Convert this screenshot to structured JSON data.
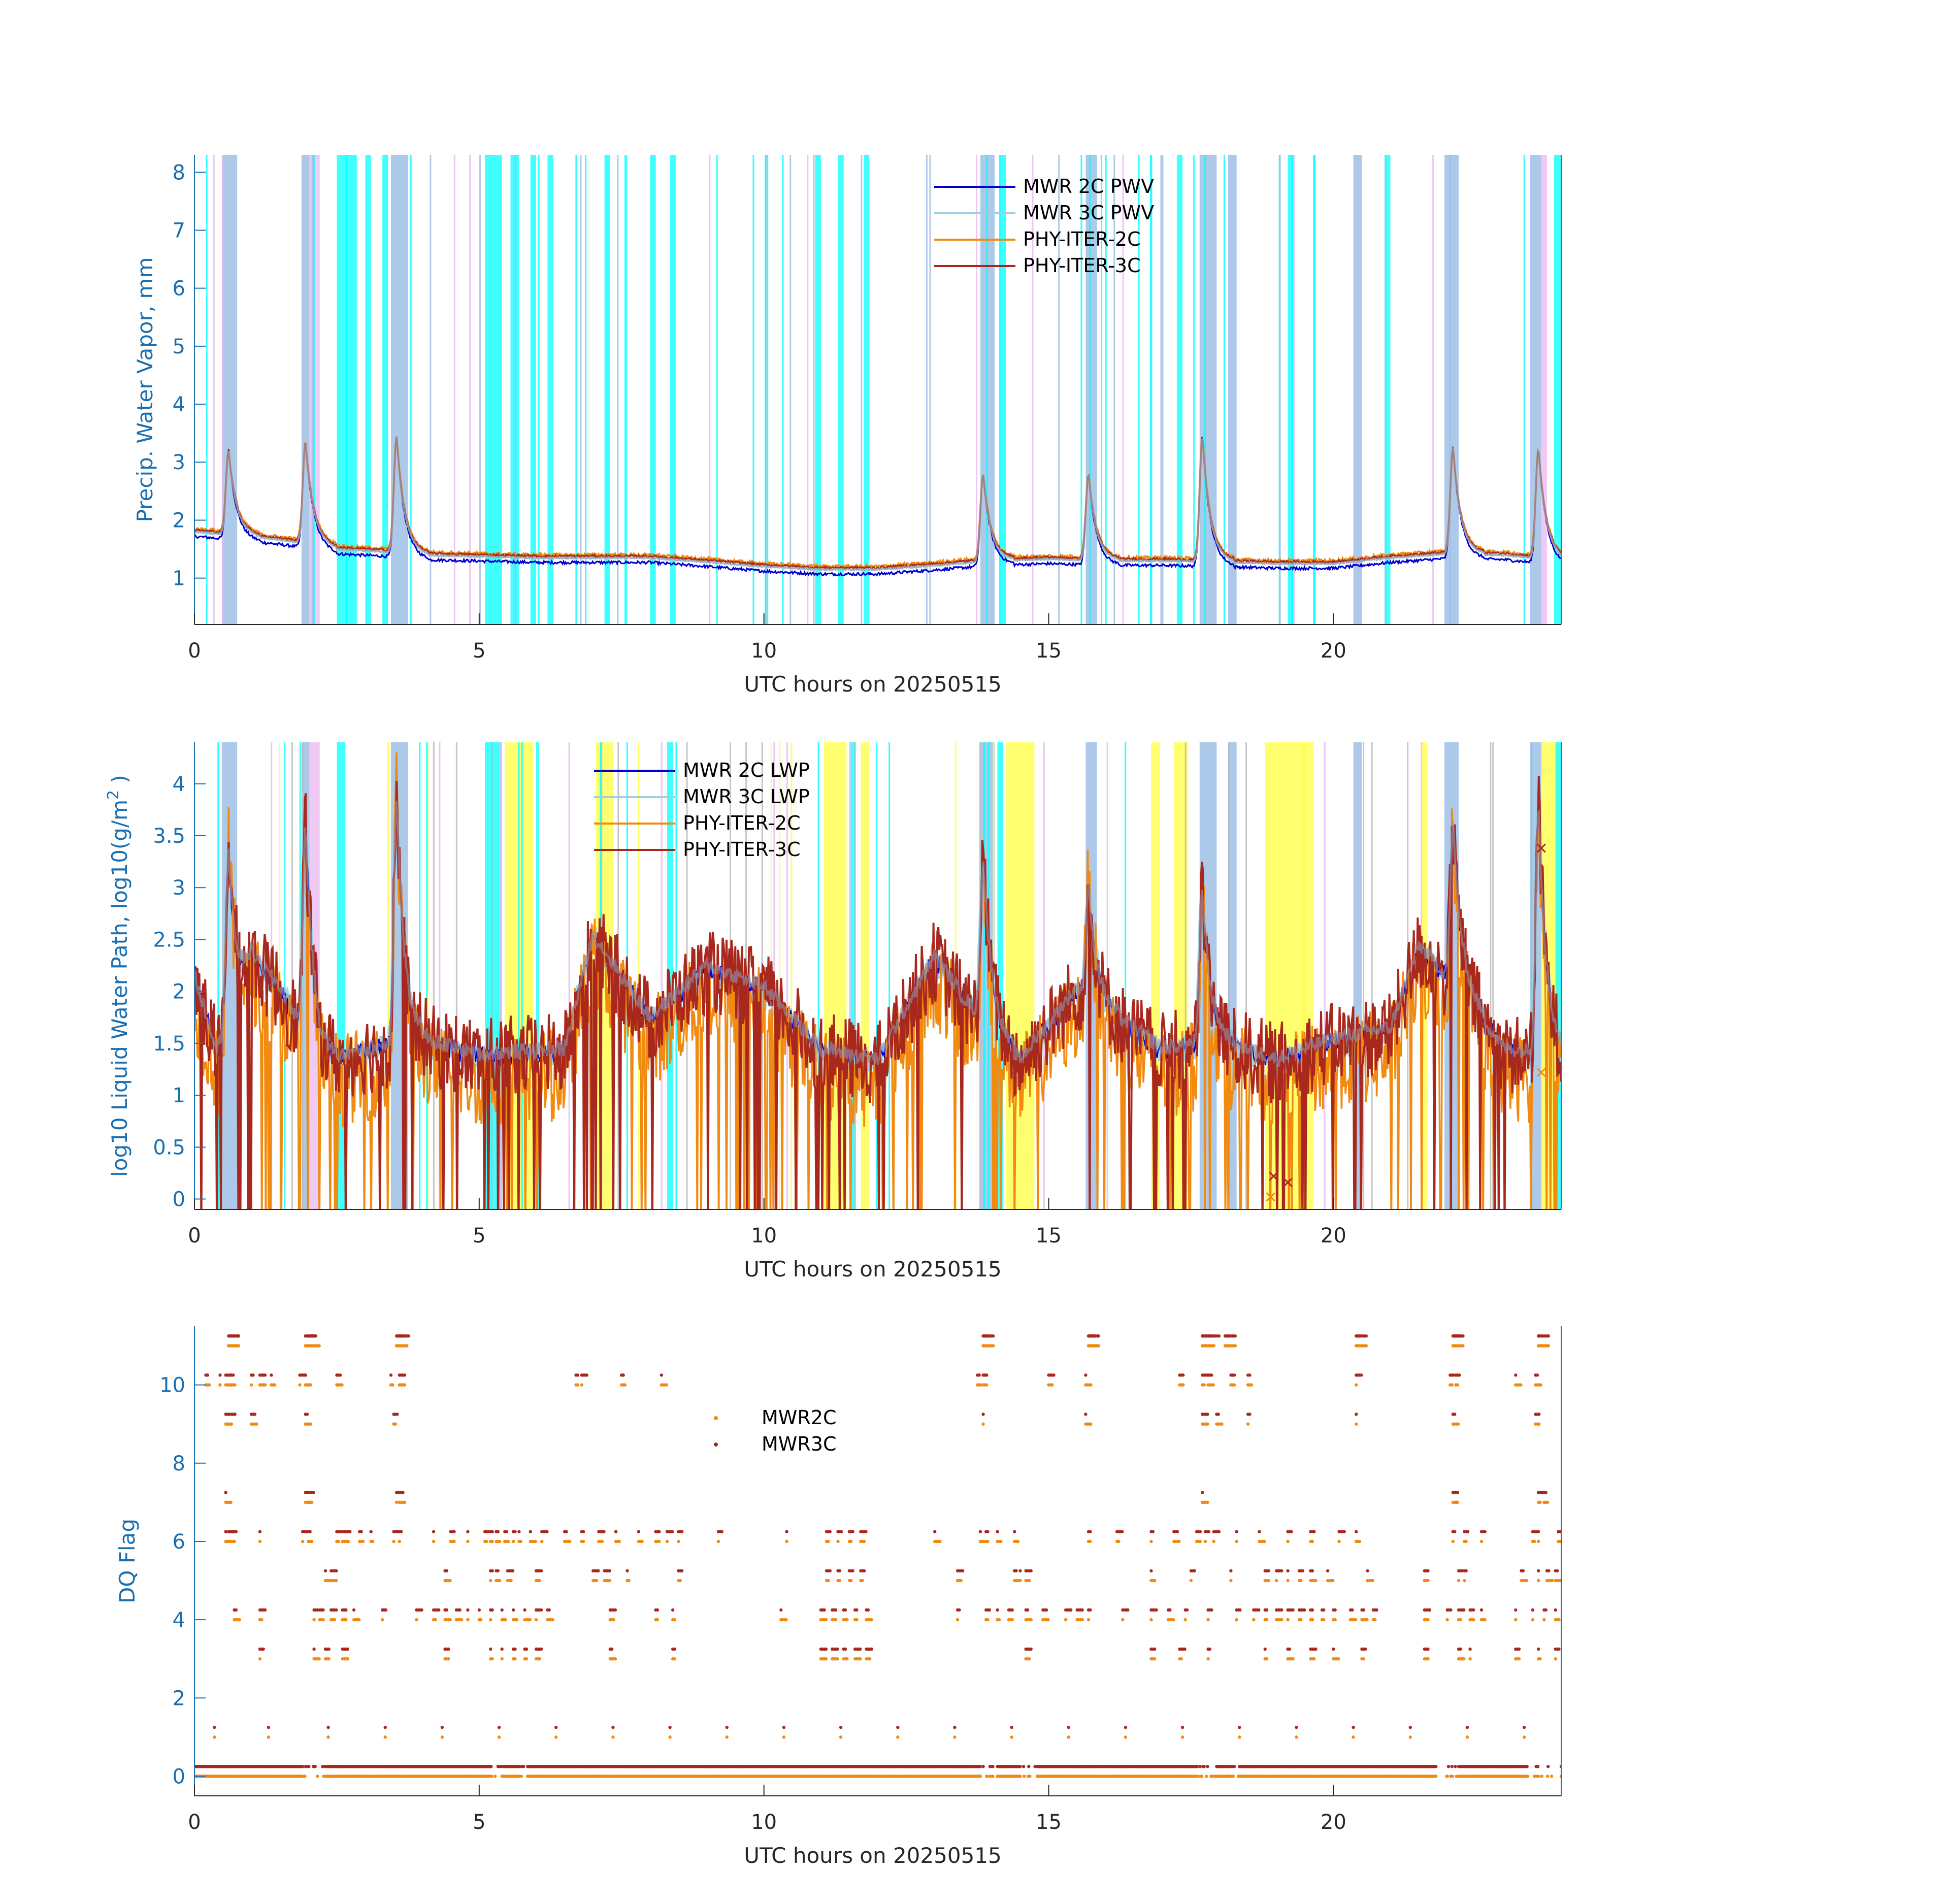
{
  "figure": {
    "colors": {
      "axis_blue": "#1a6fb0",
      "xtick_color": "#262626",
      "mwr2c": "#0000d0",
      "mwr3c": "#9fd0e0",
      "phy2c": "#f08a10",
      "phy3c": "#a8281e",
      "flag_blue": "#9dbfe6",
      "flag_cyan": "#00ffff",
      "flag_pink": "#e9b8ef",
      "flag_yellow": "#ffff40",
      "flag_gray": "#b8b8b8"
    }
  },
  "chart_data": [
    {
      "type": "line",
      "xlabel": "UTC hours on 20250515",
      "ylabel": "Precip. Water Vapor, mm",
      "xlim": [
        0,
        24
      ],
      "ylim": [
        0.2,
        8.3
      ],
      "xticks": [
        0,
        5,
        10,
        15,
        20
      ],
      "yticks": [
        1,
        2,
        3,
        4,
        5,
        6,
        7,
        8
      ],
      "legend": {
        "position": "top-center",
        "entries": [
          "MWR 2C PWV",
          "MWR 3C PWV",
          "PHY-ITER-2C",
          "PHY-ITER-3C"
        ]
      },
      "baseline": [
        [
          0,
          1.8
        ],
        [
          1,
          1.72
        ],
        [
          2,
          1.6
        ],
        [
          2.5,
          1.5
        ],
        [
          3.5,
          1.45
        ],
        [
          4,
          1.4
        ],
        [
          6,
          1.35
        ],
        [
          8,
          1.35
        ],
        [
          9,
          1.28
        ],
        [
          10,
          1.2
        ],
        [
          11,
          1.15
        ],
        [
          12,
          1.15
        ],
        [
          13,
          1.22
        ],
        [
          14,
          1.3
        ],
        [
          15,
          1.33
        ],
        [
          16,
          1.3
        ],
        [
          17,
          1.3
        ],
        [
          18,
          1.28
        ],
        [
          19,
          1.25
        ],
        [
          20,
          1.25
        ],
        [
          21,
          1.35
        ],
        [
          22,
          1.42
        ],
        [
          23,
          1.4
        ],
        [
          24,
          1.3
        ]
      ],
      "spikes": [
        [
          0.6,
          3.2
        ],
        [
          1.95,
          3.35
        ],
        [
          3.55,
          3.45
        ],
        [
          13.85,
          2.8
        ],
        [
          15.7,
          2.8
        ],
        [
          17.7,
          3.45
        ],
        [
          22.1,
          3.25
        ],
        [
          23.6,
          3.25
        ]
      ],
      "flag_bands": [
        {
          "color": "blue",
          "ranges": [
            [
              0.48,
              0.75
            ],
            [
              1.88,
              2.02
            ],
            [
              3.45,
              3.75
            ],
            [
              13.8,
              14.05
            ],
            [
              15.65,
              15.85
            ],
            [
              17.65,
              17.95
            ],
            [
              18.15,
              18.3
            ],
            [
              20.35,
              20.5
            ],
            [
              21.95,
              22.2
            ],
            [
              23.45,
              23.65
            ]
          ]
        },
        {
          "color": "pink",
          "ranges": [
            [
              2.02,
              2.2
            ],
            [
              23.65,
              23.75
            ]
          ]
        },
        {
          "color": "cyan",
          "ranges": [
            [
              2.5,
              2.85
            ],
            [
              3.0,
              3.1
            ],
            [
              3.3,
              3.4
            ],
            [
              5.1,
              5.4
            ],
            [
              5.55,
              5.7
            ],
            [
              5.9,
              6.0
            ],
            [
              6.2,
              6.3
            ],
            [
              7.2,
              7.3
            ],
            [
              7.55,
              7.6
            ],
            [
              8.0,
              8.1
            ],
            [
              8.35,
              8.45
            ],
            [
              10.9,
              11.0
            ],
            [
              11.3,
              11.4
            ],
            [
              11.75,
              11.85
            ],
            [
              14.15,
              14.25
            ],
            [
              17.25,
              17.35
            ],
            [
              19.2,
              19.3
            ],
            [
              20.9,
              21.0
            ],
            [
              23.9,
              24.0
            ]
          ]
        }
      ]
    },
    {
      "type": "line",
      "xlabel": "UTC hours on 20250515",
      "ylabel": "log10 Liquid Water Path, log10(g/m",
      "ylabel_sup": "2",
      "ylabel_close": " )",
      "xlim": [
        0,
        24
      ],
      "ylim": [
        -0.1,
        4.4
      ],
      "xticks": [
        0,
        5,
        10,
        15,
        20
      ],
      "yticks": [
        "0",
        "0.5",
        "1",
        "1.5",
        "2",
        "2.5",
        "3",
        "3.5",
        "4"
      ],
      "ytick_values": [
        0,
        0.5,
        1,
        1.5,
        2,
        2.5,
        3,
        3.5,
        4
      ],
      "legend": {
        "position": "top-left",
        "entries": [
          "MWR 2C LWP",
          "MWR 3C LWP",
          "PHY-ITER-2C",
          "PHY-ITER-3C"
        ]
      },
      "baseline": [
        [
          0,
          2.1
        ],
        [
          0.4,
          1.4
        ],
        [
          1.0,
          2.3
        ],
        [
          1.5,
          2.0
        ],
        [
          2.2,
          1.3
        ],
        [
          3.0,
          1.4
        ],
        [
          4.0,
          1.5
        ],
        [
          5.0,
          1.35
        ],
        [
          6.5,
          1.4
        ],
        [
          7.0,
          2.5
        ],
        [
          8.0,
          1.7
        ],
        [
          9.0,
          2.2
        ],
        [
          10.0,
          2.0
        ],
        [
          11.0,
          1.4
        ],
        [
          12.0,
          1.3
        ],
        [
          13.0,
          2.3
        ],
        [
          13.5,
          1.9
        ],
        [
          14.5,
          1.3
        ],
        [
          15.5,
          2.0
        ],
        [
          16.5,
          1.6
        ],
        [
          17.0,
          1.4
        ],
        [
          18.0,
          1.5
        ],
        [
          19.0,
          1.3
        ],
        [
          20.0,
          1.5
        ],
        [
          21.0,
          1.6
        ],
        [
          21.5,
          2.4
        ],
        [
          22.5,
          1.8
        ],
        [
          23.0,
          1.4
        ],
        [
          24.0,
          1.35
        ]
      ],
      "spikes": [
        [
          0.6,
          3.35
        ],
        [
          1.95,
          3.6
        ],
        [
          3.55,
          3.9
        ],
        [
          13.85,
          3.3
        ],
        [
          15.7,
          3.0
        ],
        [
          17.7,
          3.0
        ],
        [
          22.1,
          3.6
        ],
        [
          23.6,
          3.85
        ]
      ],
      "markers": [
        {
          "x": 23.65,
          "y": 3.38,
          "series": "phy3c"
        },
        {
          "x": 23.65,
          "y": 1.22,
          "series": "phy2c"
        },
        {
          "x": 18.9,
          "y": 0.02,
          "series": "phy2c"
        },
        {
          "x": 18.95,
          "y": 0.22,
          "series": "phy3c"
        },
        {
          "x": 19.2,
          "y": 0.16,
          "series": "phy3c"
        }
      ],
      "flag_bands": [
        {
          "color": "blue",
          "ranges": [
            [
              0.48,
              0.75
            ],
            [
              1.88,
              2.02
            ],
            [
              3.45,
              3.75
            ],
            [
              13.8,
              14.05
            ],
            [
              15.65,
              15.85
            ],
            [
              17.65,
              17.95
            ],
            [
              18.15,
              18.3
            ],
            [
              20.35,
              20.5
            ],
            [
              21.95,
              22.2
            ],
            [
              23.45,
              23.65
            ]
          ]
        },
        {
          "color": "yellow",
          "ranges": [
            [
              5.45,
              5.95
            ],
            [
              7.05,
              7.35
            ],
            [
              11.05,
              11.45
            ],
            [
              11.7,
              11.85
            ],
            [
              14.25,
              14.75
            ],
            [
              16.8,
              16.95
            ],
            [
              17.2,
              17.45
            ],
            [
              18.8,
              19.65
            ],
            [
              21.55,
              21.65
            ],
            [
              23.65,
              23.95
            ]
          ]
        },
        {
          "color": "cyan",
          "ranges": [
            [
              2.5,
              2.65
            ],
            [
              5.1,
              5.4
            ],
            [
              6.0,
              6.05
            ],
            [
              8.3,
              8.4
            ],
            [
              11.5,
              11.6
            ],
            [
              14.1,
              14.2
            ],
            [
              23.9,
              24.0
            ]
          ]
        },
        {
          "color": "pink",
          "ranges": [
            [
              2.02,
              2.2
            ]
          ]
        }
      ]
    },
    {
      "type": "scatter",
      "xlabel": "UTC hours on 20250515",
      "ylabel": "DQ Flag",
      "xlim": [
        0,
        24
      ],
      "ylim": [
        -0.5,
        11.5
      ],
      "xticks": [
        0,
        5,
        10,
        15,
        20
      ],
      "yticks": [
        0,
        2,
        4,
        6,
        8,
        10
      ],
      "legend": {
        "position": "center",
        "entries": [
          "MWR2C",
          "MWR3C"
        ]
      },
      "series": [
        {
          "name": "MWR2C",
          "color_key": "phy2c",
          "offset": 0
        },
        {
          "name": "MWR3C",
          "color_key": "phy3c",
          "offset": 0.25
        }
      ],
      "events": [
        0.6,
        1.95,
        3.55,
        13.85,
        15.7,
        17.7,
        18.1,
        20.4,
        22.1,
        23.6
      ],
      "level_points": {
        "11": [
          0.6,
          0.65,
          0.7,
          1.95,
          2.0,
          2.05,
          2.1,
          3.55,
          3.6,
          3.7,
          13.85,
          13.9,
          15.7,
          15.75,
          17.7,
          17.8,
          17.9,
          18.1,
          20.4,
          22.1,
          22.15,
          23.6
        ],
        "10": [
          0.2,
          0.45,
          0.55,
          0.65,
          1.0,
          1.15,
          1.35,
          1.85,
          1.95,
          2.5,
          3.45,
          3.6,
          6.7,
          6.8,
          7.5,
          8.2,
          13.75,
          13.85,
          15.0,
          15.65,
          17.3,
          17.7,
          17.8,
          18.2,
          18.5,
          20.4,
          22.05,
          22.15,
          23.2,
          23.55
        ],
        "9": [
          0.55,
          0.65,
          1.0,
          1.95,
          3.5,
          13.85,
          15.65,
          17.7,
          17.95,
          18.5,
          20.4,
          22.1,
          23.55
        ],
        "7": [
          0.55,
          1.95,
          2.0,
          3.55,
          3.6,
          17.7,
          22.1,
          22.15,
          23.6,
          23.7
        ],
        "6": [
          0.55,
          0.6,
          0.7,
          1.15,
          1.9,
          2.0,
          2.5,
          2.6,
          2.7,
          2.9,
          3.1,
          3.5,
          3.6,
          4.2,
          4.5,
          4.8,
          5.1,
          5.2,
          5.3,
          5.45,
          5.6,
          5.7,
          5.9,
          6.1,
          6.5,
          6.8,
          7.1,
          7.4,
          7.8,
          8.1,
          8.3,
          8.5,
          9.2,
          10.4,
          11.1,
          11.3,
          11.5,
          11.7,
          13.0,
          13.8,
          13.9,
          14.1,
          14.4,
          15.7,
          16.2,
          16.8,
          17.2,
          17.6,
          17.75,
          17.9,
          18.3,
          18.7,
          19.2,
          19.6,
          20.1,
          20.4,
          22.1,
          22.3,
          22.6,
          23.5,
          23.6,
          23.95
        ],
        "5": [
          2.3,
          2.4,
          4.4,
          5.2,
          5.3,
          5.5,
          6.0,
          7.0,
          7.2,
          7.6,
          8.5,
          11.1,
          11.3,
          11.5,
          11.7,
          13.4,
          14.4,
          14.5,
          14.6,
          16.8,
          17.5,
          18.2,
          18.8,
          19.0,
          19.2,
          19.4,
          19.6,
          19.9,
          20.6,
          21.6,
          22.2,
          22.3,
          23.3,
          23.6,
          23.75,
          23.9
        ],
        "4": [
          0.7,
          1.15,
          2.1,
          2.2,
          2.4,
          2.6,
          2.8,
          3.3,
          3.9,
          4.2,
          4.4,
          4.6,
          4.8,
          5.0,
          5.2,
          5.4,
          5.6,
          5.8,
          6.0,
          6.2,
          7.3,
          8.1,
          8.4,
          10.3,
          11.0,
          11.2,
          11.4,
          11.6,
          11.8,
          13.4,
          13.9,
          14.1,
          14.3,
          14.6,
          14.9,
          15.3,
          15.5,
          15.7,
          16.3,
          16.8,
          17.1,
          17.4,
          17.8,
          18.3,
          18.6,
          18.8,
          19.0,
          19.2,
          19.4,
          19.6,
          19.8,
          20.0,
          20.3,
          20.5,
          20.7,
          21.6,
          22.0,
          22.2,
          22.4,
          22.6,
          23.2,
          23.5,
          23.7,
          23.9
        ],
        "3": [
          1.15,
          2.1,
          2.3,
          2.6,
          4.4,
          5.2,
          5.4,
          5.6,
          5.8,
          6.0,
          7.3,
          8.4,
          11.0,
          11.2,
          11.4,
          11.6,
          11.8,
          14.6,
          16.8,
          17.3,
          17.8,
          18.8,
          19.2,
          19.6,
          20.0,
          20.5,
          21.6,
          22.2,
          22.4,
          23.2,
          23.6,
          23.9
        ],
        "1": [
          0.35,
          1.3,
          2.35,
          3.35,
          4.35,
          5.35,
          6.35,
          7.35,
          8.35,
          9.35,
          10.35,
          11.35,
          12.35,
          13.35,
          14.35,
          15.35,
          16.35,
          17.35,
          18.35,
          19.35,
          20.35,
          21.35,
          22.35,
          23.35
        ]
      },
      "zero_level_gaps": [
        [
          1.9,
          2.3
        ],
        [
          5.2,
          5.4
        ],
        [
          5.7,
          5.85
        ],
        [
          11.05,
          11.1
        ],
        [
          13.8,
          14.1
        ],
        [
          14.5,
          14.8
        ],
        [
          17.6,
          17.95
        ],
        [
          18.2,
          18.35
        ],
        [
          21.8,
          22.2
        ],
        [
          23.4,
          24.0
        ]
      ]
    }
  ]
}
